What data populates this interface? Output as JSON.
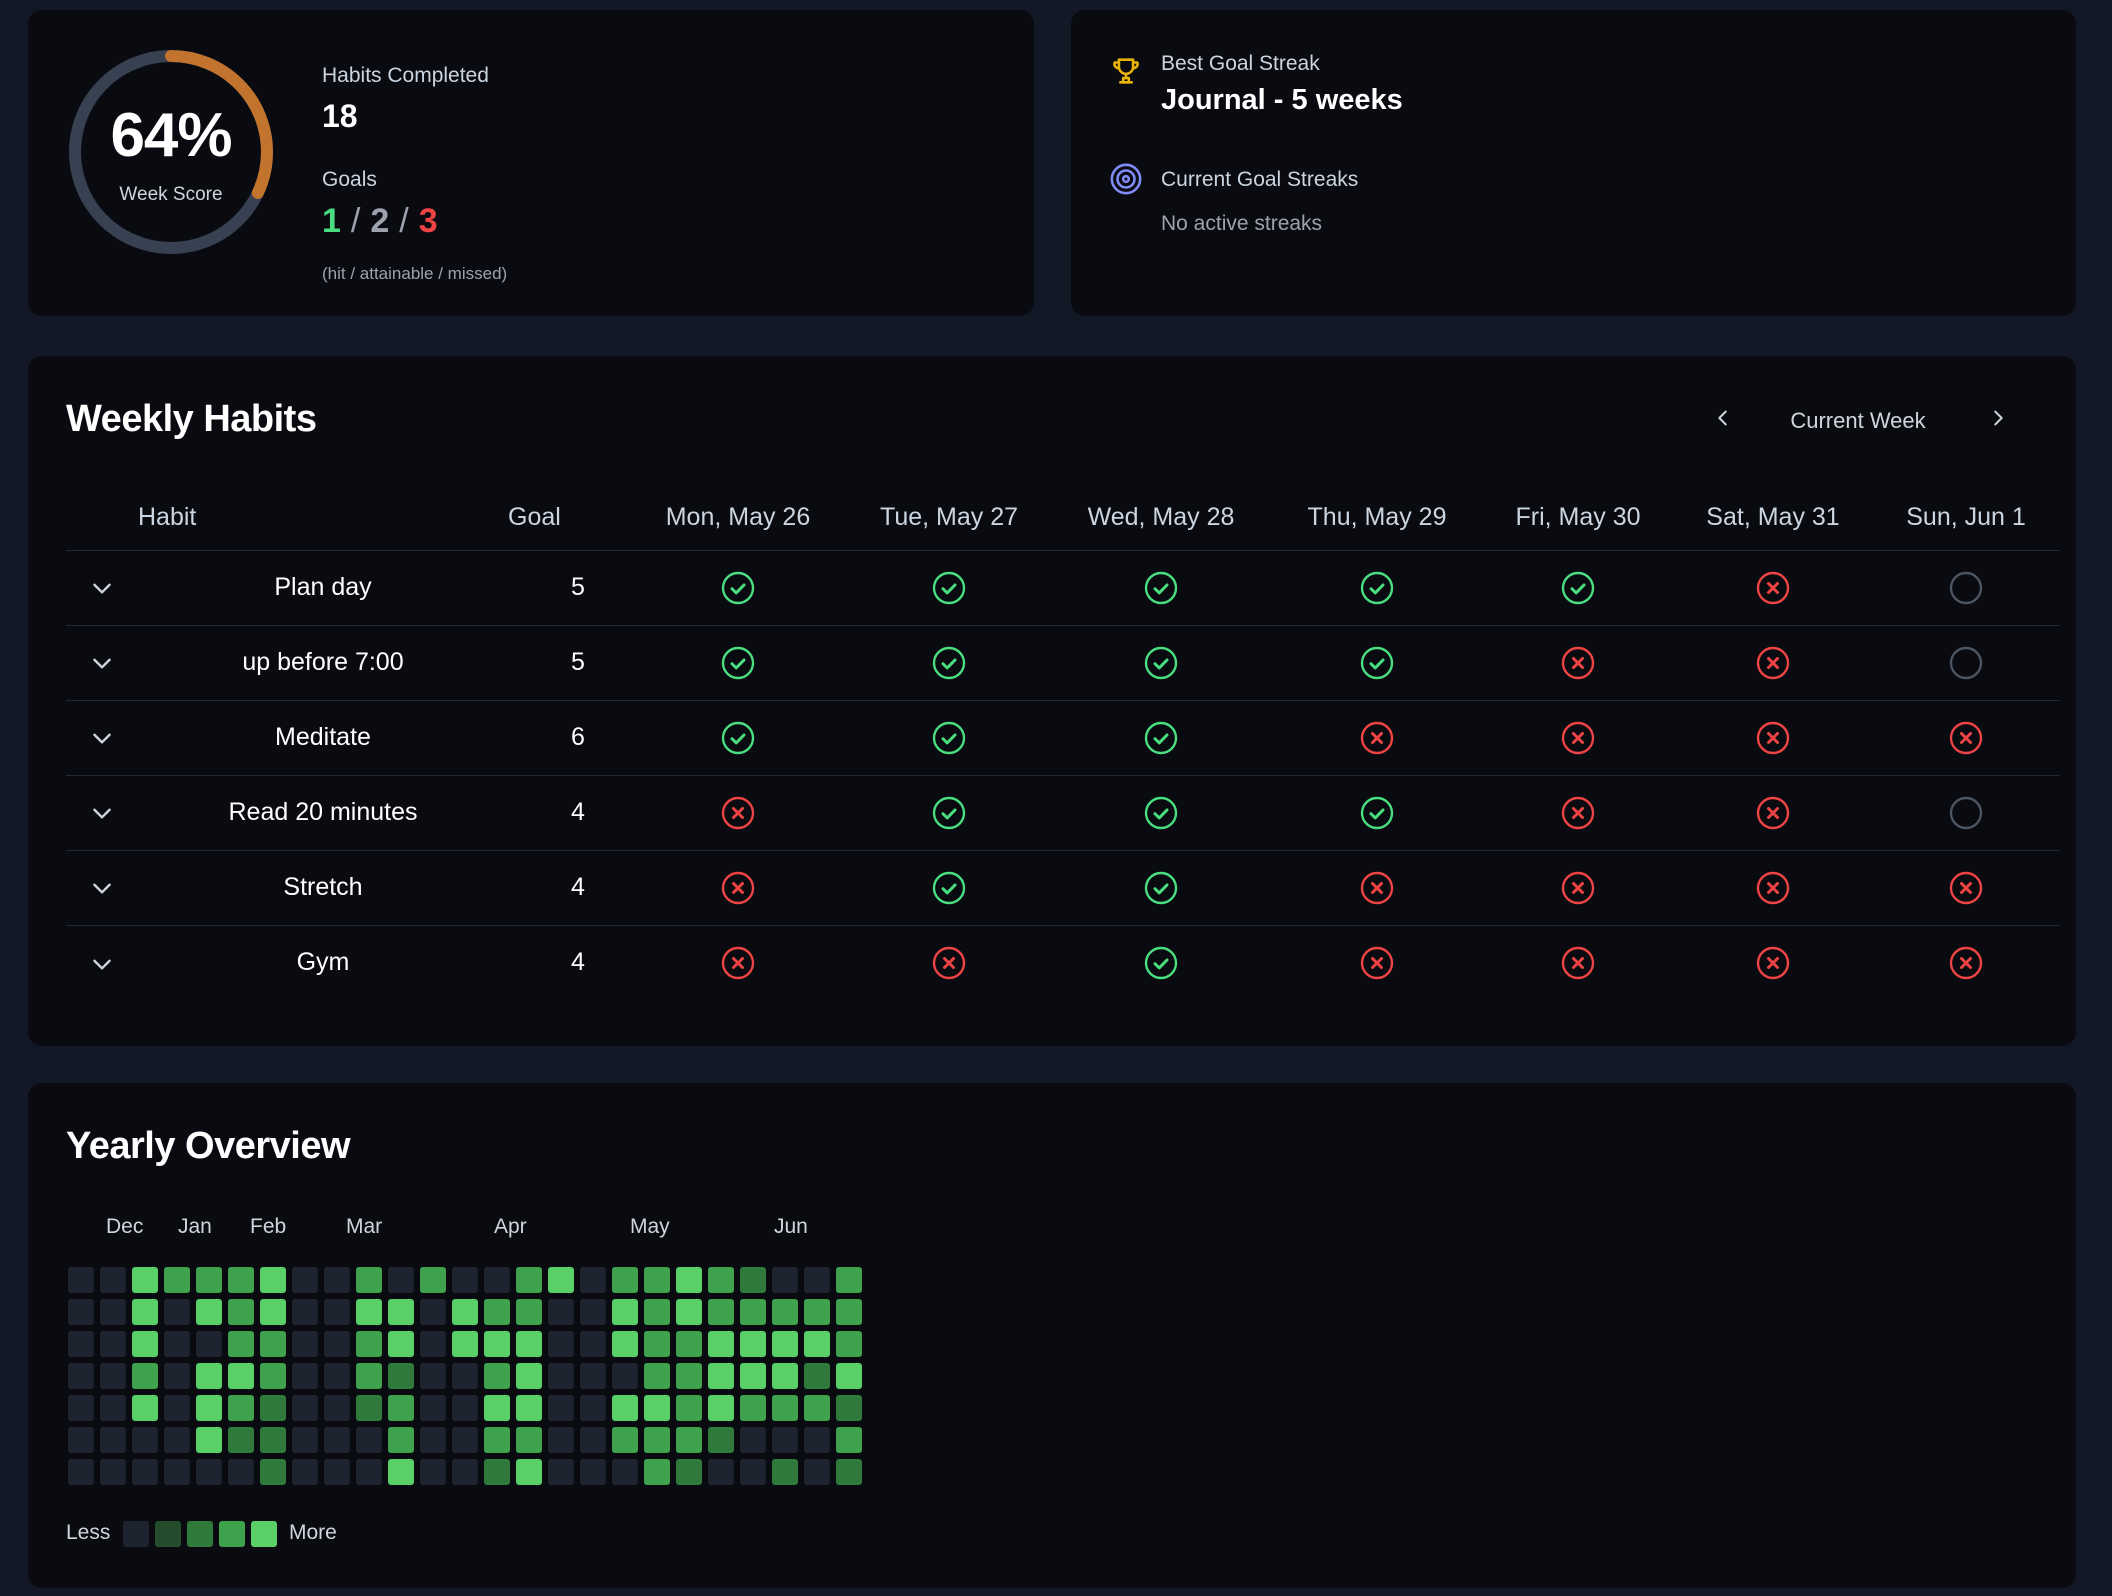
{
  "summary": {
    "week_score_pct": 64,
    "week_score_text": "64%",
    "week_score_label": "Week Score",
    "habits_completed_label": "Habits Completed",
    "habits_completed_value": "18",
    "goals_label": "Goals",
    "goals_hit": "1",
    "goals_attainable": "2",
    "goals_missed": "3",
    "goals_separator": "/",
    "goals_note": "(hit / attainable / missed)",
    "colors": {
      "ring_fill": "#c2732e",
      "ring_track": "#374151",
      "hit": "#4ade80",
      "missed": "#ef4444"
    }
  },
  "streaks": {
    "best_label": "Best Goal Streak",
    "best_value": "Journal - 5 weeks",
    "current_label": "Current Goal Streaks",
    "current_value": "No active streaks",
    "icons": {
      "best": "trophy-icon",
      "current": "target-icon"
    }
  },
  "weekly": {
    "title": "Weekly Habits",
    "nav_label": "Current Week",
    "columns": {
      "habit": "Habit",
      "goal": "Goal",
      "days": [
        "Mon, May 26",
        "Tue, May 27",
        "Wed, May 28",
        "Thu, May 29",
        "Fri, May 30",
        "Sat, May 31",
        "Sun, Jun 1"
      ]
    },
    "habits": [
      {
        "name": "Plan day",
        "goal": "5",
        "days": [
          "done",
          "done",
          "done",
          "done",
          "done",
          "missed",
          "empty"
        ]
      },
      {
        "name": "up before 7:00",
        "goal": "5",
        "days": [
          "done",
          "done",
          "done",
          "done",
          "missed",
          "missed",
          "empty"
        ]
      },
      {
        "name": "Meditate",
        "goal": "6",
        "days": [
          "done",
          "done",
          "done",
          "missed",
          "missed",
          "missed",
          "missed"
        ]
      },
      {
        "name": "Read 20 minutes",
        "goal": "4",
        "days": [
          "missed",
          "done",
          "done",
          "done",
          "missed",
          "missed",
          "empty"
        ]
      },
      {
        "name": "Stretch",
        "goal": "4",
        "days": [
          "missed",
          "done",
          "done",
          "missed",
          "missed",
          "missed",
          "missed"
        ]
      },
      {
        "name": "Gym",
        "goal": "4",
        "days": [
          "missed",
          "missed",
          "done",
          "missed",
          "missed",
          "missed",
          "missed"
        ]
      }
    ],
    "status_colors": {
      "done": "#4ade80",
      "missed": "#ef4444",
      "empty": "#4b5563"
    }
  },
  "yearly": {
    "title": "Yearly Overview",
    "months": [
      "Dec",
      "Jan",
      "Feb",
      "Mar",
      "Apr",
      "May",
      "Jun"
    ],
    "legend_less": "Less",
    "legend_more": "More",
    "level_colors": [
      "#1e2330",
      "#234d2c",
      "#2f7a3a",
      "#3fa34d",
      "#5bd068"
    ],
    "weeks": [
      [
        0,
        0,
        0,
        0,
        0,
        0,
        0
      ],
      [
        0,
        0,
        0,
        0,
        0,
        0,
        0
      ],
      [
        4,
        4,
        4,
        3,
        4,
        0,
        0
      ],
      [
        3,
        0,
        0,
        0,
        0,
        0,
        0
      ],
      [
        3,
        4,
        0,
        4,
        4,
        4,
        0
      ],
      [
        3,
        3,
        3,
        4,
        3,
        2,
        0
      ],
      [
        4,
        4,
        3,
        3,
        2,
        2,
        2
      ],
      [
        0,
        0,
        0,
        0,
        0,
        0,
        0
      ],
      [
        0,
        0,
        0,
        0,
        0,
        0,
        0
      ],
      [
        3,
        4,
        3,
        3,
        2,
        0,
        0
      ],
      [
        0,
        4,
        4,
        2,
        3,
        3,
        4
      ],
      [
        3,
        0,
        0,
        0,
        0,
        0,
        0
      ],
      [
        0,
        4,
        4,
        0,
        0,
        0,
        0
      ],
      [
        0,
        3,
        4,
        3,
        4,
        3,
        2
      ],
      [
        3,
        3,
        4,
        4,
        4,
        3,
        4
      ],
      [
        4,
        0,
        0,
        0,
        0,
        0,
        0
      ],
      [
        0,
        0,
        0,
        0,
        0,
        0,
        0
      ],
      [
        3,
        4,
        4,
        0,
        4,
        3,
        0
      ],
      [
        3,
        3,
        3,
        3,
        4,
        3,
        3
      ],
      [
        4,
        4,
        3,
        3,
        3,
        3,
        2
      ],
      [
        3,
        3,
        4,
        4,
        4,
        2,
        0
      ],
      [
        2,
        3,
        4,
        4,
        3,
        0,
        0
      ],
      [
        0,
        3,
        4,
        4,
        3,
        0,
        2
      ],
      [
        0,
        3,
        4,
        2,
        3,
        0,
        0
      ],
      [
        3,
        3,
        3,
        4,
        2,
        3,
        2
      ]
    ]
  }
}
